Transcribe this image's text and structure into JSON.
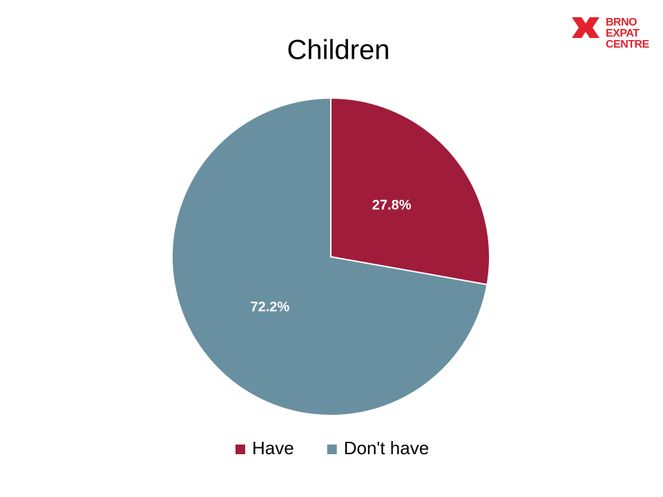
{
  "chart_data": {
    "type": "pie",
    "title": "Children",
    "categories": [
      "Have",
      "Don't have"
    ],
    "values": [
      27.8,
      72.2
    ],
    "value_labels": [
      "27.8%",
      "72.2%"
    ],
    "colors": [
      "#a01c3a",
      "#6990a0"
    ],
    "legend": "bottom"
  },
  "logo": [
    "BRNO",
    "EXPAT",
    "CENTRE"
  ]
}
